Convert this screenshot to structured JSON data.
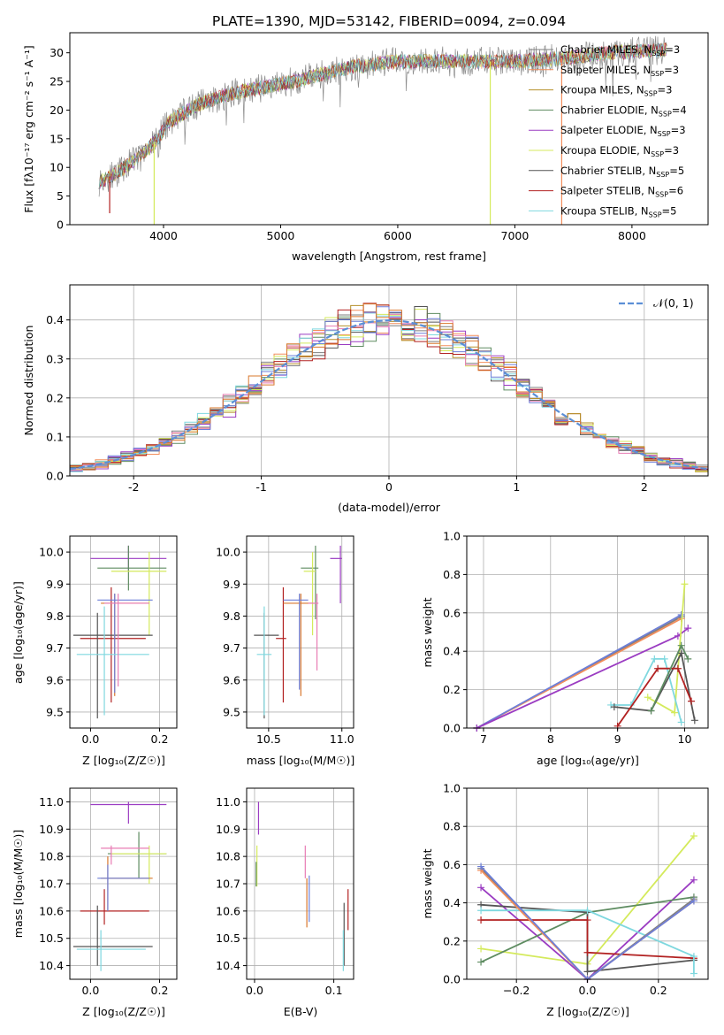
{
  "title": "PLATE=1390, MJD=53142, FIBERID=0094, z=0.094",
  "colors": {
    "Chabrier MILES": "#7f7f7f",
    "Salpeter MILES": "#f28e5c",
    "Kroupa MILES": "#b5902a",
    "Chabrier ELODIE": "#5e8c61",
    "Salpeter ELODIE": "#9b3cc2",
    "Kroupa ELODIE": "#d4ea5c",
    "Chabrier STELIB": "#555555",
    "Salpeter STELIB": "#b22222",
    "Kroupa STELIB": "#7fd8df",
    "gaussian": "#5b8fd6",
    "extra_pink": "#e87cb4",
    "extra_blue": "#6d7fd8",
    "extra_orange": "#d9782e"
  },
  "chart_data": [
    {
      "name": "spectrum",
      "type": "line",
      "xlabel": "wavelength [Angstrom, rest frame]",
      "ylabel": "Flux [f",
      "ylabel_display": "Flux [fλ10⁻¹⁷ erg cm⁻² s⁻¹ A⁻¹]",
      "xlim": [
        3200,
        8650
      ],
      "ylim": [
        0,
        33.5
      ],
      "xticks": [
        4000,
        5000,
        6000,
        7000,
        8000
      ],
      "yticks": [
        0,
        5,
        10,
        15,
        20,
        25,
        30
      ],
      "grid": false,
      "legend_placement": "right",
      "legend": [
        {
          "label": "Chabrier MILES, N",
          "n": "=3"
        },
        {
          "label": "Salpeter MILES, N",
          "n": "=3"
        },
        {
          "label": "Kroupa MILES, N",
          "n": "=3"
        },
        {
          "label": "Chabrier ELODIE, N",
          "n": "=4"
        },
        {
          "label": "Salpeter ELODIE, N",
          "n": "=3"
        },
        {
          "label": "Kroupa ELODIE, N",
          "n": "=3"
        },
        {
          "label": "Chabrier STELIB, N",
          "n": "=5"
        },
        {
          "label": "Salpeter STELIB, N",
          "n": "=6"
        },
        {
          "label": "Kroupa STELIB, N",
          "n": "=5"
        }
      ],
      "ssp_sub": "SSP",
      "continuum": [
        [
          3450,
          7.5
        ],
        [
          3600,
          9
        ],
        [
          3800,
          12
        ],
        [
          3950,
          15
        ],
        [
          4050,
          18
        ],
        [
          4300,
          21
        ],
        [
          4600,
          23
        ],
        [
          5000,
          24.5
        ],
        [
          5300,
          26
        ],
        [
          5600,
          27.5
        ],
        [
          6000,
          28.5
        ],
        [
          6500,
          28.5
        ],
        [
          7000,
          28.5
        ],
        [
          7400,
          29
        ],
        [
          7800,
          30
        ],
        [
          8300,
          30.5
        ]
      ],
      "spikes": [
        [
          3920,
          0
        ],
        [
          6790,
          0
        ],
        [
          7400,
          0
        ],
        [
          3540,
          2
        ]
      ]
    },
    {
      "name": "residuals",
      "type": "line",
      "xlabel": "(data-model)/error",
      "ylabel": "Normed distribution",
      "xlim": [
        -2.5,
        2.5
      ],
      "ylim": [
        0,
        0.49
      ],
      "xticks": [
        -2,
        -1,
        0,
        1,
        2
      ],
      "yticks": [
        0.0,
        0.1,
        0.2,
        0.3,
        0.4
      ],
      "grid": true,
      "legend_placement": "top-right",
      "legend_label": "𝒩(0, 1)",
      "bin_width": 0.1,
      "n_hist": 12
    },
    {
      "name": "age_vs_Z",
      "type": "scatter",
      "xlabel": "Z [log",
      "xlabel_display": "Z [log₁₀(Z/Z☉)]",
      "ylabel_display": "age  [log₁₀(age/yr)]",
      "xlim": [
        -0.06,
        0.25
      ],
      "ylim": [
        9.45,
        10.05
      ],
      "xticks": [
        0.0,
        0.2
      ],
      "yticks": [
        9.5,
        9.6,
        9.7,
        9.8,
        9.9,
        10.0
      ],
      "grid": true,
      "points": [
        {
          "c": "Salpeter ELODIE",
          "x": 0.11,
          "y": 9.98,
          "xe": [
            0.0,
            0.22
          ],
          "ye": [
            9.94,
            10.02
          ]
        },
        {
          "c": "Chabrier ELODIE",
          "x": 0.11,
          "y": 9.95,
          "xe": [
            0.02,
            0.22
          ],
          "ye": [
            9.88,
            10.02
          ]
        },
        {
          "c": "Kroupa ELODIE",
          "x": 0.17,
          "y": 9.94,
          "xe": [
            0.06,
            0.22
          ],
          "ye": [
            9.74,
            10.0
          ]
        },
        {
          "c": "Salpeter STELIB",
          "x": 0.06,
          "y": 9.73,
          "xe": [
            -0.03,
            0.16
          ],
          "ye": [
            9.53,
            9.89
          ]
        },
        {
          "c": "Chabrier STELIB",
          "x": 0.02,
          "y": 9.74,
          "xe": [
            -0.05,
            0.18
          ],
          "ye": [
            9.48,
            9.81
          ]
        },
        {
          "c": "extra_orange",
          "x": 0.07,
          "y": 9.84,
          "xe": [
            0.03,
            0.17
          ],
          "ye": [
            9.55,
            9.87
          ]
        },
        {
          "c": "extra_blue",
          "x": 0.07,
          "y": 9.85,
          "xe": [
            0.02,
            0.18
          ],
          "ye": [
            9.56,
            9.87
          ]
        },
        {
          "c": "Kroupa STELIB",
          "x": 0.04,
          "y": 9.68,
          "xe": [
            -0.04,
            0.17
          ],
          "ye": [
            9.49,
            9.83
          ]
        },
        {
          "c": "extra_pink",
          "x": 0.08,
          "y": 9.84,
          "xe": [
            0.04,
            0.17
          ],
          "ye": [
            9.58,
            9.87
          ]
        }
      ]
    },
    {
      "name": "age_vs_mass",
      "type": "scatter",
      "xlabel_display": "mass [log₁₀(M/M☉)]",
      "xlim": [
        10.35,
        11.08
      ],
      "ylim": [
        9.45,
        10.05
      ],
      "xticks": [
        10.5,
        11.0
      ],
      "xtick_labels": [
        "10.5",
        "11.0"
      ],
      "yticks": [
        9.5,
        9.6,
        9.7,
        9.8,
        9.9,
        10.0
      ],
      "grid": true,
      "points": [
        {
          "c": "Salpeter ELODIE",
          "x": 10.99,
          "y": 9.98,
          "xe": [
            10.92,
            11.0
          ],
          "ye": [
            9.84,
            10.02
          ]
        },
        {
          "c": "Chabrier ELODIE",
          "x": 10.82,
          "y": 9.95,
          "xe": [
            10.72,
            10.84
          ],
          "ye": [
            9.79,
            10.02
          ]
        },
        {
          "c": "Kroupa ELODIE",
          "x": 10.8,
          "y": 9.94,
          "xe": [
            10.74,
            10.82
          ],
          "ye": [
            9.74,
            10.0
          ]
        },
        {
          "c": "Salpeter STELIB",
          "x": 10.6,
          "y": 9.73,
          "xe": [
            10.55,
            10.62
          ],
          "ye": [
            9.53,
            9.89
          ]
        },
        {
          "c": "Chabrier STELIB",
          "x": 10.47,
          "y": 9.74,
          "xe": [
            10.4,
            10.57
          ],
          "ye": [
            9.48,
            9.81
          ]
        },
        {
          "c": "extra_orange",
          "x": 10.72,
          "y": 9.84,
          "xe": [
            10.6,
            10.8
          ],
          "ye": [
            9.55,
            9.87
          ]
        },
        {
          "c": "extra_blue",
          "x": 10.71,
          "y": 9.85,
          "xe": [
            10.6,
            10.77
          ],
          "ye": [
            9.57,
            9.87
          ]
        },
        {
          "c": "Kroupa STELIB",
          "x": 10.47,
          "y": 9.68,
          "xe": [
            10.42,
            10.52
          ],
          "ye": [
            9.49,
            9.83
          ]
        },
        {
          "c": "extra_pink",
          "x": 10.83,
          "y": 9.84,
          "xe": [
            10.77,
            10.84
          ],
          "ye": [
            9.63,
            9.87
          ]
        }
      ]
    },
    {
      "name": "mass_weight_vs_age",
      "type": "line",
      "xlabel_display": "age  [log₁₀(age/yr)]",
      "ylabel": "mass weight",
      "xlim": [
        6.75,
        10.35
      ],
      "ylim": [
        0,
        1.0
      ],
      "xticks": [
        7,
        8,
        9,
        10
      ],
      "yticks": [
        0.0,
        0.2,
        0.4,
        0.6,
        0.8,
        1.0
      ],
      "grid": true,
      "series": [
        {
          "c": "Chabrier MILES",
          "x": [
            6.9,
            9.95
          ],
          "y": [
            0.0,
            0.58
          ]
        },
        {
          "c": "Salpeter MILES",
          "x": [
            6.9,
            9.95
          ],
          "y": [
            0.0,
            0.57
          ]
        },
        {
          "c": "extra_blue",
          "x": [
            6.9,
            9.95
          ],
          "y": [
            0.0,
            0.59
          ]
        },
        {
          "c": "Salpeter ELODIE",
          "x": [
            6.9,
            9.9,
            10.05
          ],
          "y": [
            0.0,
            0.48,
            0.52
          ]
        },
        {
          "c": "Kroupa ELODIE",
          "x": [
            9.45,
            9.85,
            10.0
          ],
          "y": [
            0.16,
            0.08,
            0.75
          ]
        },
        {
          "c": "Kroupa STELIB",
          "x": [
            8.9,
            9.2,
            9.55,
            9.7,
            9.95
          ],
          "y": [
            0.12,
            0.12,
            0.36,
            0.36,
            0.03
          ]
        },
        {
          "c": "Chabrier STELIB",
          "x": [
            8.95,
            9.5,
            9.95,
            10.15
          ],
          "y": [
            0.11,
            0.09,
            0.39,
            0.04
          ]
        },
        {
          "c": "Salpeter STELIB",
          "x": [
            9.0,
            9.6,
            9.9,
            10.1
          ],
          "y": [
            0.01,
            0.31,
            0.31,
            0.14
          ]
        },
        {
          "c": "Chabrier ELODIE",
          "x": [
            9.5,
            9.95,
            10.05
          ],
          "y": [
            0.09,
            0.43,
            0.36
          ]
        }
      ]
    },
    {
      "name": "mass_vs_Z",
      "type": "scatter",
      "xlabel_display": "Z [log₁₀(Z/Z☉)]",
      "ylabel_display": "mass [log₁₀(M/M☉)]",
      "xlim": [
        -0.06,
        0.25
      ],
      "ylim": [
        10.35,
        11.05
      ],
      "xticks": [
        0.0,
        0.2
      ],
      "yticks": [
        10.4,
        10.5,
        10.6,
        10.7,
        10.8,
        10.9,
        11.0
      ],
      "grid": true,
      "points": [
        {
          "c": "Salpeter ELODIE",
          "x": 0.11,
          "y": 10.99,
          "xe": [
            0.0,
            0.22
          ],
          "ye": [
            10.92,
            11.0
          ]
        },
        {
          "c": "Chabrier ELODIE",
          "x": 0.14,
          "y": 10.81,
          "xe": [
            0.05,
            0.22
          ],
          "ye": [
            10.72,
            10.89
          ]
        },
        {
          "c": "Kroupa ELODIE",
          "x": 0.17,
          "y": 10.81,
          "xe": [
            0.06,
            0.22
          ],
          "ye": [
            10.7,
            10.84
          ]
        },
        {
          "c": "Salpeter STELIB",
          "x": 0.04,
          "y": 10.6,
          "xe": [
            -0.03,
            0.17
          ],
          "ye": [
            10.55,
            10.68
          ]
        },
        {
          "c": "Chabrier STELIB",
          "x": 0.02,
          "y": 10.47,
          "xe": [
            -0.05,
            0.18
          ],
          "ye": [
            10.4,
            10.62
          ]
        },
        {
          "c": "extra_orange",
          "x": 0.05,
          "y": 10.72,
          "xe": [
            0.03,
            0.18
          ],
          "ye": [
            10.6,
            10.8
          ]
        },
        {
          "c": "extra_blue",
          "x": 0.05,
          "y": 10.72,
          "xe": [
            0.02,
            0.17
          ],
          "ye": [
            10.6,
            10.77
          ]
        },
        {
          "c": "Kroupa STELIB",
          "x": 0.03,
          "y": 10.46,
          "xe": [
            -0.04,
            0.16
          ],
          "ye": [
            10.38,
            10.53
          ]
        },
        {
          "c": "extra_pink",
          "x": 0.06,
          "y": 10.83,
          "xe": [
            0.03,
            0.17
          ],
          "ye": [
            10.77,
            10.84
          ]
        }
      ]
    },
    {
      "name": "mass_vs_EBV",
      "type": "scatter",
      "xlabel": "E(B-V)",
      "xlim": [
        -0.01,
        0.125
      ],
      "ylim": [
        10.35,
        11.05
      ],
      "xticks": [
        0.0,
        0.1
      ],
      "yticks": [
        10.4,
        10.5,
        10.6,
        10.7,
        10.8,
        10.9,
        11.0
      ],
      "grid": true,
      "points": [
        {
          "c": "Salpeter ELODIE",
          "x": 0.005,
          "y": 10.99,
          "xe": [
            0.005,
            0.005
          ],
          "ye": [
            10.88,
            11.0
          ]
        },
        {
          "c": "Kroupa ELODIE",
          "x": 0.003,
          "y": 10.78,
          "xe": [
            0.003,
            0.003
          ],
          "ye": [
            10.69,
            10.84
          ]
        },
        {
          "c": "Chabrier ELODIE",
          "x": 0.002,
          "y": 10.74,
          "xe": [
            0.002,
            0.002
          ],
          "ye": [
            10.69,
            10.78
          ]
        },
        {
          "c": "extra_pink",
          "x": 0.064,
          "y": 10.8,
          "xe": [
            0.064,
            0.064
          ],
          "ye": [
            10.72,
            10.84
          ]
        },
        {
          "c": "extra_orange",
          "x": 0.066,
          "y": 10.65,
          "xe": [
            0.066,
            0.066
          ],
          "ye": [
            10.54,
            10.72
          ]
        },
        {
          "c": "extra_blue",
          "x": 0.069,
          "y": 10.66,
          "xe": [
            0.069,
            0.069
          ],
          "ye": [
            10.56,
            10.73
          ]
        },
        {
          "c": "Chabrier STELIB",
          "x": 0.113,
          "y": 10.56,
          "xe": [
            0.113,
            0.113
          ],
          "ye": [
            10.4,
            10.63
          ]
        },
        {
          "c": "Salpeter STELIB",
          "x": 0.118,
          "y": 10.6,
          "xe": [
            0.118,
            0.118
          ],
          "ye": [
            10.53,
            10.68
          ]
        },
        {
          "c": "Kroupa STELIB",
          "x": 0.112,
          "y": 10.46,
          "xe": [
            0.112,
            0.112
          ],
          "ye": [
            10.38,
            10.53
          ]
        }
      ]
    },
    {
      "name": "mass_weight_vs_Z",
      "type": "line",
      "xlabel_display": "Z [log₁₀(Z/Z☉)]",
      "ylabel": "mass weight",
      "xlim": [
        -0.34,
        0.34
      ],
      "ylim": [
        0,
        1.0
      ],
      "xticks": [
        -0.2,
        0.0,
        0.2
      ],
      "xtick_labels": [
        "−0.2",
        "0.0",
        "0.2"
      ],
      "yticks": [
        0.0,
        0.2,
        0.4,
        0.6,
        0.8,
        1.0
      ],
      "grid": true,
      "series": [
        {
          "c": "Kroupa ELODIE",
          "x": [
            -0.3,
            0.0,
            0.3
          ],
          "y": [
            0.16,
            0.08,
            0.75
          ]
        },
        {
          "c": "Salpeter ELODIE",
          "x": [
            -0.3,
            0.0,
            0.3
          ],
          "y": [
            0.48,
            0.0,
            0.52
          ]
        },
        {
          "c": "Chabrier ELODIE",
          "x": [
            -0.3,
            0.0,
            0.3
          ],
          "y": [
            0.09,
            0.35,
            0.43
          ]
        },
        {
          "c": "Chabrier STELIB",
          "x": [
            -0.3,
            0.0,
            0.0,
            0.3
          ],
          "y": [
            0.39,
            0.35,
            0.04,
            0.1
          ]
        },
        {
          "c": "Salpeter STELIB",
          "x": [
            -0.3,
            0.0,
            0.0,
            0.3
          ],
          "y": [
            0.31,
            0.31,
            0.14,
            0.11
          ]
        },
        {
          "c": "Kroupa STELIB",
          "x": [
            -0.3,
            0.0,
            0.3,
            0.3
          ],
          "y": [
            0.36,
            0.36,
            0.12,
            0.03
          ]
        },
        {
          "c": "Chabrier MILES",
          "x": [
            -0.3,
            0.0,
            0.3
          ],
          "y": [
            0.58,
            0.0,
            0.42
          ]
        },
        {
          "c": "Salpeter MILES",
          "x": [
            -0.3,
            0.0,
            0.3
          ],
          "y": [
            0.57,
            0.0,
            0.41
          ]
        },
        {
          "c": "extra_blue",
          "x": [
            -0.3,
            0.0,
            0.3
          ],
          "y": [
            0.59,
            0.0,
            0.41
          ]
        }
      ]
    }
  ]
}
